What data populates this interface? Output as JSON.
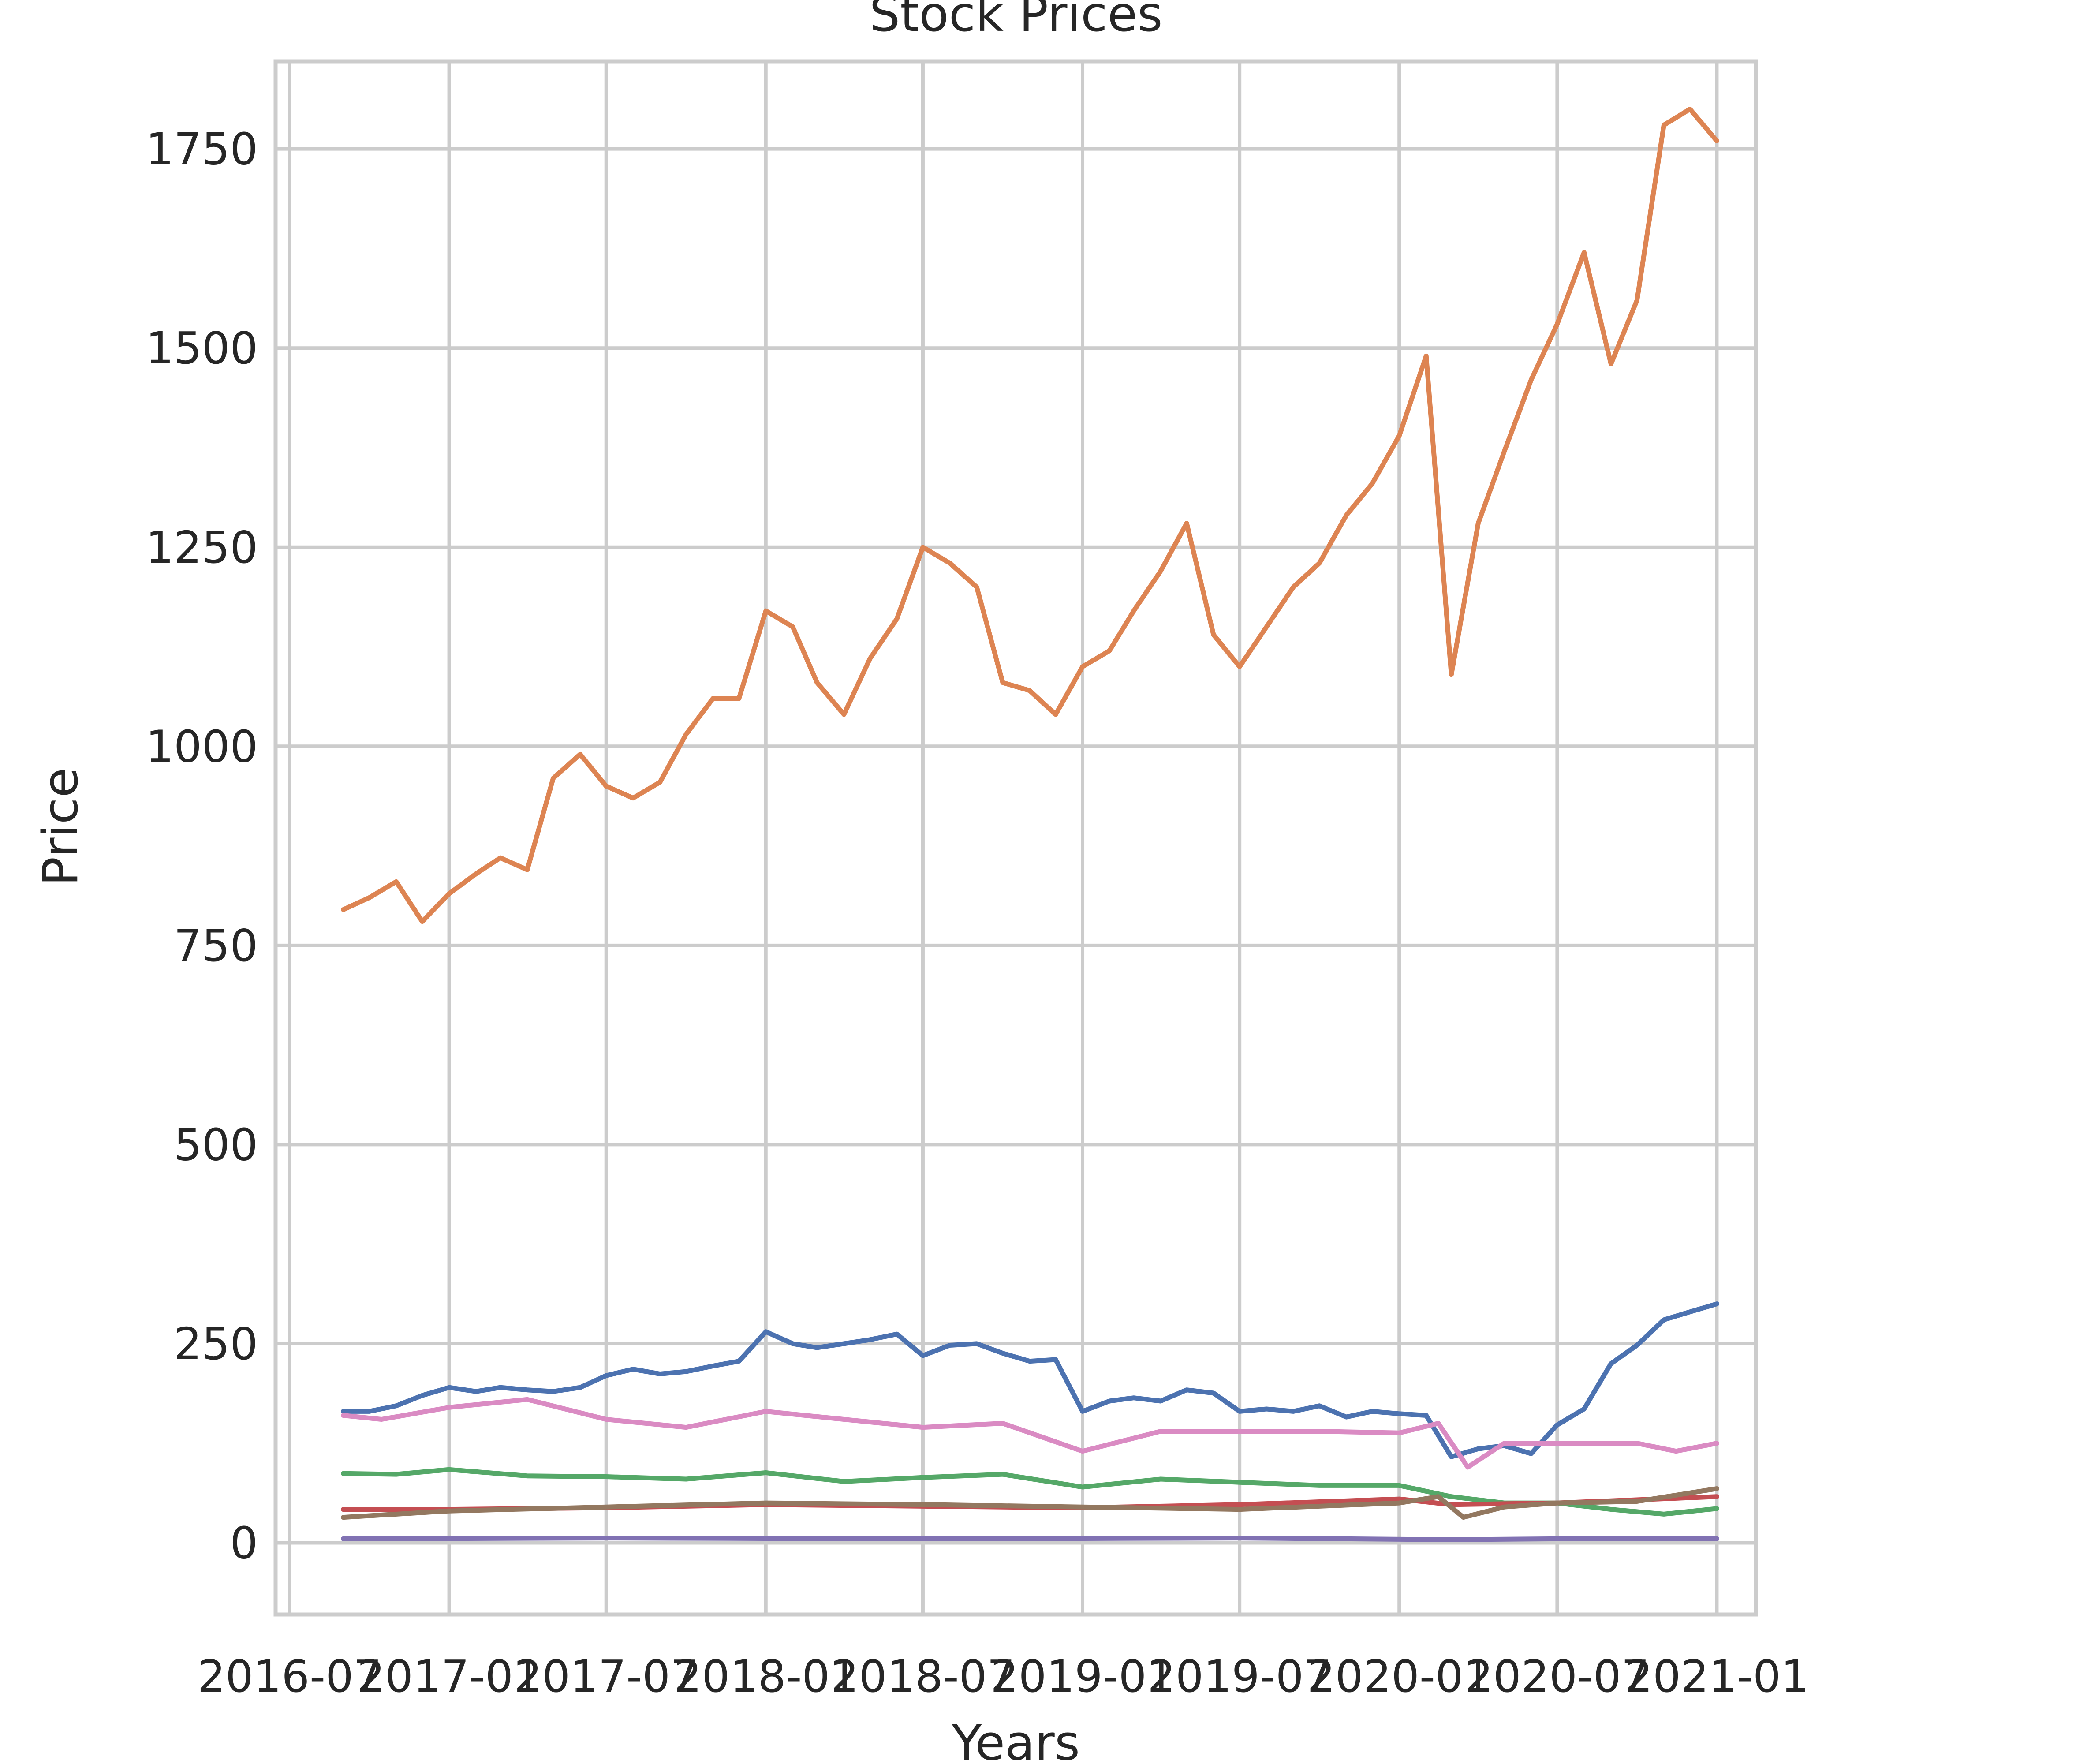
{
  "chart_data": {
    "type": "line",
    "title": "Stock Prices",
    "xlabel": "Years",
    "ylabel": "Price",
    "x_tick_labels": [
      "2016-07",
      "2017-01",
      "2017-07",
      "2018-01",
      "2018-07",
      "2019-01",
      "2019-07",
      "2020-01",
      "2020-07",
      "2021-01"
    ],
    "y_tick_labels": [
      "0",
      "250",
      "500",
      "750",
      "1000",
      "1250",
      "1500",
      "1750"
    ],
    "y_ticks": [
      0,
      250,
      500,
      750,
      1000,
      1250,
      1500,
      1750
    ],
    "xlim": [
      "2016-06-15",
      "2021-02-15"
    ],
    "ylim": [
      -90,
      1860
    ],
    "grid": true,
    "legend": "none",
    "colors": [
      "#4c72b0",
      "#dd8452",
      "#55a868",
      "#c44e52",
      "#8172b3",
      "#937860",
      "#da8bc3"
    ],
    "series": [
      {
        "x": [
          "2016-09-01",
          "2016-10-01",
          "2016-11-01",
          "2016-12-01",
          "2017-01-01",
          "2017-02-01",
          "2017-03-01",
          "2017-04-01",
          "2017-05-01",
          "2017-06-01",
          "2017-07-01",
          "2017-08-01",
          "2017-09-01",
          "2017-10-01",
          "2017-11-01",
          "2017-12-01",
          "2018-01-01",
          "2018-02-01",
          "2018-03-01",
          "2018-04-01",
          "2018-05-01",
          "2018-06-01",
          "2018-07-01",
          "2018-08-01",
          "2018-09-01",
          "2018-10-01",
          "2018-11-01",
          "2018-12-01",
          "2019-01-01",
          "2019-02-01",
          "2019-03-01",
          "2019-04-01",
          "2019-05-01",
          "2019-06-01",
          "2019-07-01",
          "2019-08-01",
          "2019-09-01",
          "2019-10-01",
          "2019-11-01",
          "2019-12-01",
          "2020-01-01",
          "2020-02-01",
          "2020-03-01",
          "2020-04-01",
          "2020-05-01",
          "2020-06-01",
          "2020-07-01",
          "2020-08-01",
          "2020-09-01",
          "2020-10-01",
          "2020-11-01",
          "2020-12-01",
          "2021-01-01"
        ],
        "values": [
          165,
          165,
          172,
          185,
          195,
          190,
          195,
          192,
          190,
          195,
          210,
          218,
          212,
          215,
          222,
          228,
          265,
          250,
          245,
          250,
          255,
          262,
          235,
          248,
          250,
          238,
          228,
          230,
          165,
          178,
          182,
          178,
          192,
          188,
          165,
          168,
          165,
          172,
          158,
          165,
          162,
          160,
          108,
          118,
          122,
          112,
          148,
          168,
          225,
          248,
          280,
          290,
          300
        ]
      },
      {
        "x": [
          "2016-09-01",
          "2016-10-01",
          "2016-11-01",
          "2016-12-01",
          "2017-01-01",
          "2017-02-01",
          "2017-03-01",
          "2017-04-01",
          "2017-05-01",
          "2017-06-01",
          "2017-07-01",
          "2017-08-01",
          "2017-09-01",
          "2017-10-01",
          "2017-11-01",
          "2017-12-01",
          "2018-01-01",
          "2018-02-01",
          "2018-03-01",
          "2018-04-01",
          "2018-05-01",
          "2018-06-01",
          "2018-07-01",
          "2018-08-01",
          "2018-09-01",
          "2018-10-01",
          "2018-11-01",
          "2018-12-01",
          "2019-01-01",
          "2019-02-01",
          "2019-03-01",
          "2019-04-01",
          "2019-05-01",
          "2019-06-01",
          "2019-07-01",
          "2019-08-01",
          "2019-09-01",
          "2019-10-01",
          "2019-11-01",
          "2019-12-01",
          "2020-01-01",
          "2020-02-01",
          "2020-03-01",
          "2020-04-01",
          "2020-05-01",
          "2020-06-01",
          "2020-07-01",
          "2020-08-01",
          "2020-09-01",
          "2020-10-01",
          "2020-11-01",
          "2020-12-01",
          "2021-01-01"
        ],
        "values": [
          795,
          810,
          830,
          780,
          815,
          840,
          860,
          845,
          960,
          990,
          950,
          935,
          955,
          1015,
          1060,
          1060,
          1170,
          1150,
          1080,
          1040,
          1110,
          1160,
          1250,
          1230,
          1200,
          1080,
          1070,
          1040,
          1100,
          1120,
          1170,
          1220,
          1280,
          1140,
          1100,
          1150,
          1200,
          1230,
          1290,
          1330,
          1390,
          1490,
          1090,
          1280,
          1370,
          1460,
          1530,
          1620,
          1480,
          1560,
          1780,
          1800,
          1760
        ]
      },
      {
        "x": [
          "2016-09-01",
          "2016-11-01",
          "2017-01-01",
          "2017-04-01",
          "2017-07-01",
          "2017-10-01",
          "2018-01-01",
          "2018-04-01",
          "2018-07-01",
          "2018-10-01",
          "2019-01-01",
          "2019-04-01",
          "2019-07-01",
          "2019-10-01",
          "2020-01-01",
          "2020-03-01",
          "2020-05-01",
          "2020-07-01",
          "2020-09-01",
          "2020-11-01",
          "2021-01-01"
        ],
        "values": [
          87,
          86,
          92,
          84,
          83,
          80,
          88,
          77,
          82,
          86,
          70,
          80,
          76,
          72,
          72,
          58,
          50,
          50,
          42,
          36,
          43
        ]
      },
      {
        "x": [
          "2016-09-01",
          "2017-01-01",
          "2017-07-01",
          "2018-01-01",
          "2018-07-01",
          "2019-01-01",
          "2019-07-01",
          "2020-01-01",
          "2020-03-01",
          "2020-07-01",
          "2021-01-01"
        ],
        "values": [
          42,
          42,
          44,
          48,
          46,
          44,
          48,
          55,
          48,
          50,
          58
        ]
      },
      {
        "x": [
          "2016-09-01",
          "2017-07-01",
          "2018-07-01",
          "2019-07-01",
          "2020-03-01",
          "2020-07-01",
          "2021-01-01"
        ],
        "values": [
          5,
          6,
          5,
          6,
          4,
          5,
          5
        ]
      },
      {
        "x": [
          "2016-09-01",
          "2017-01-01",
          "2017-07-01",
          "2018-01-01",
          "2018-07-01",
          "2019-01-01",
          "2019-07-01",
          "2020-01-01",
          "2020-02-15",
          "2020-03-15",
          "2020-05-01",
          "2020-07-01",
          "2020-10-01",
          "2021-01-01"
        ],
        "values": [
          32,
          40,
          45,
          50,
          48,
          45,
          42,
          50,
          58,
          32,
          45,
          50,
          52,
          68
        ]
      },
      {
        "x": [
          "2016-09-01",
          "2016-10-15",
          "2017-01-01",
          "2017-04-01",
          "2017-07-01",
          "2017-10-01",
          "2018-01-01",
          "2018-04-01",
          "2018-07-01",
          "2018-10-01",
          "2019-01-01",
          "2019-04-01",
          "2019-07-01",
          "2019-10-01",
          "2020-01-01",
          "2020-02-15",
          "2020-03-20",
          "2020-05-01",
          "2020-07-01",
          "2020-10-01",
          "2020-11-15",
          "2021-01-01"
        ],
        "values": [
          160,
          155,
          170,
          180,
          155,
          145,
          165,
          155,
          145,
          150,
          115,
          140,
          140,
          140,
          138,
          150,
          95,
          125,
          125,
          125,
          115,
          125
        ]
      }
    ]
  }
}
